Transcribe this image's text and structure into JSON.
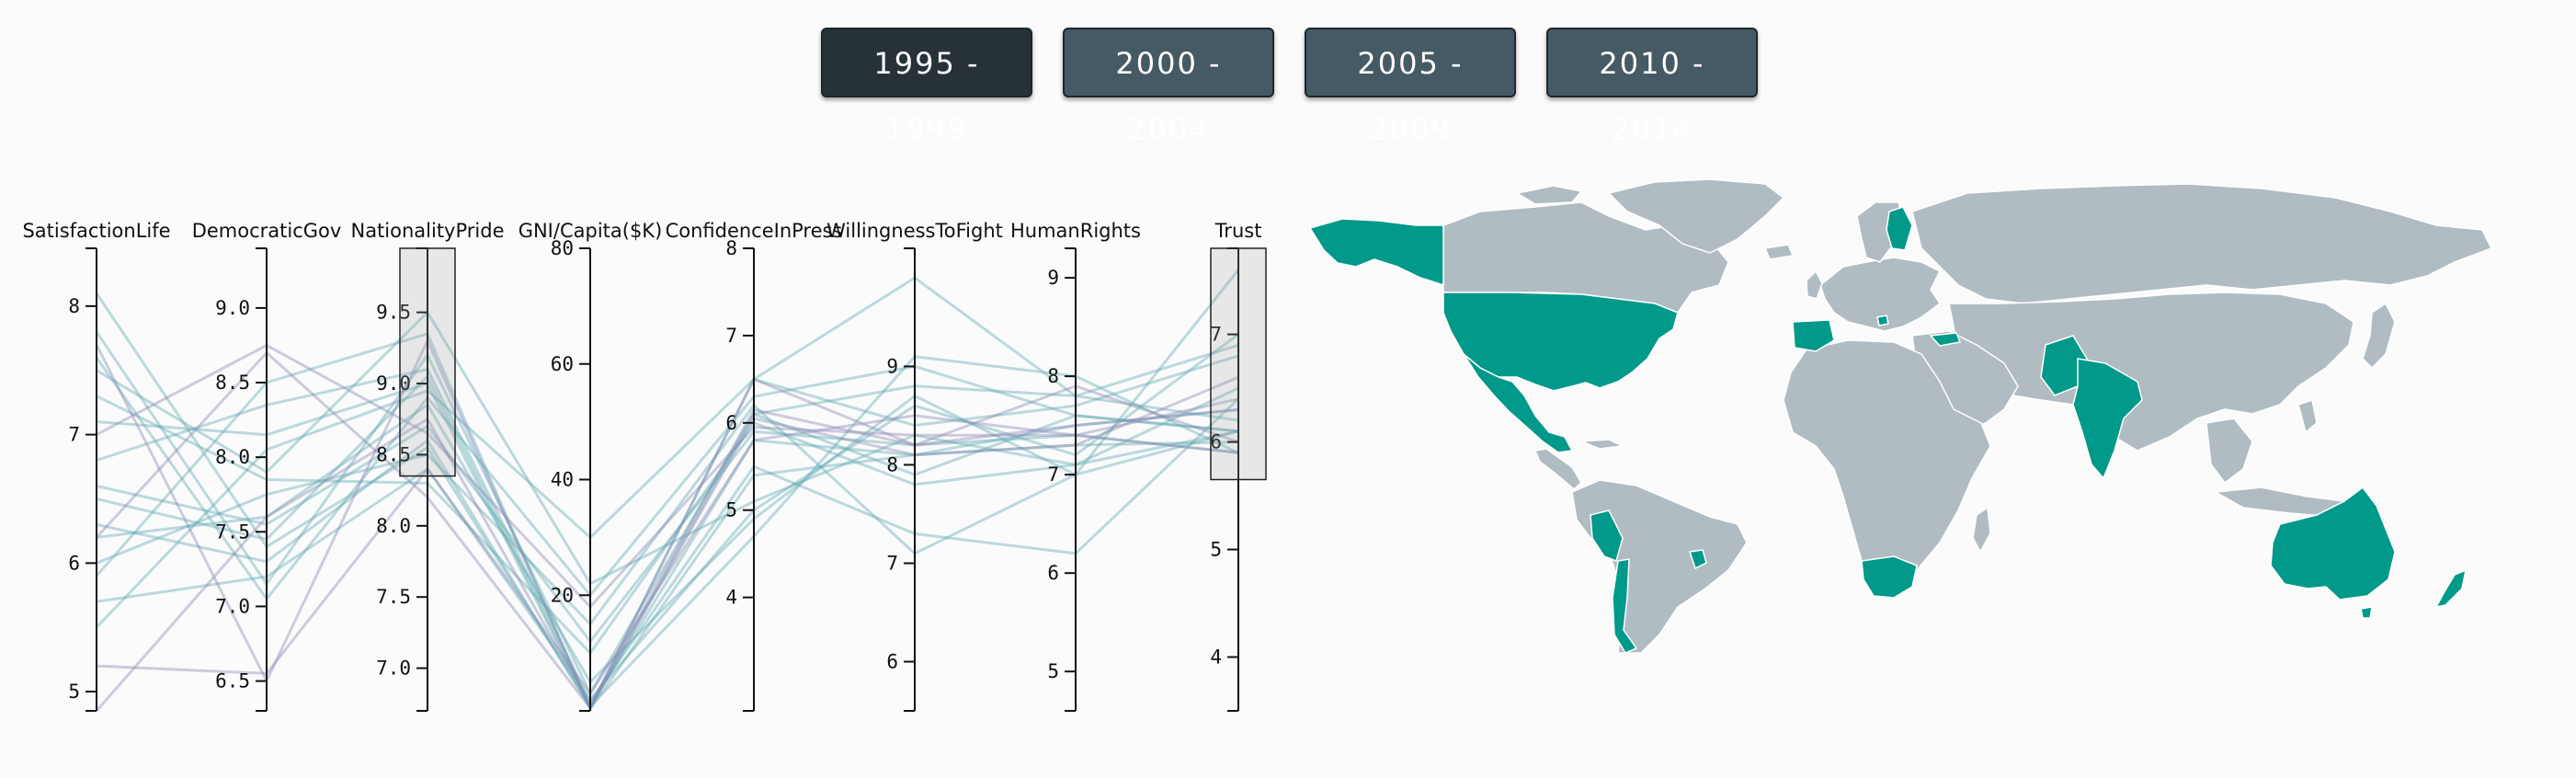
{
  "periods": [
    {
      "label": "1995 - 1999",
      "active": true
    },
    {
      "label": "2000 - 2004",
      "active": false
    },
    {
      "label": "2005 - 2009",
      "active": false
    },
    {
      "label": "2010 - 2014",
      "active": false
    }
  ],
  "colors": {
    "line_teal": "#5fa9b3",
    "line_purple": "#8a88b5",
    "axis": "#111111",
    "brush_fill": "#9e9e9e",
    "brush_stroke": "#222222",
    "land": "#b0bcc2",
    "border": "#ffffff",
    "highlight": "#00998a",
    "button": "#455a64",
    "button_active": "#263238"
  },
  "chart_data": [
    {
      "type": "parallel-coordinates",
      "axes": [
        {
          "name": "SatisfactionLife",
          "domain": [
            4.85,
            8.45
          ],
          "ticks": [
            5,
            6,
            7,
            8
          ],
          "tick_labels": [
            "5",
            "6",
            "7",
            "8"
          ]
        },
        {
          "name": "DemocraticGov",
          "domain": [
            6.3,
            9.4
          ],
          "ticks": [
            6.5,
            7.0,
            7.5,
            8.0,
            8.5,
            9.0
          ],
          "tick_labels": [
            "6.5",
            "7.0",
            "7.5",
            "8.0",
            "8.5",
            "9.0"
          ]
        },
        {
          "name": "NationalityPride",
          "domain": [
            6.7,
            9.95
          ],
          "ticks": [
            7.0,
            7.5,
            8.0,
            8.5,
            9.0,
            9.5
          ],
          "tick_labels": [
            "7.0",
            "7.5",
            "8.0",
            "8.5",
            "9.0",
            "9.5"
          ],
          "brush": [
            8.35,
            9.95
          ]
        },
        {
          "name": "GNI/Capita($K)",
          "domain": [
            0,
            80
          ],
          "ticks": [
            20,
            40,
            60,
            80
          ],
          "tick_labels": [
            "20",
            "40",
            "60",
            "80"
          ]
        },
        {
          "name": "ConfidenceInPress",
          "domain": [
            2.7,
            8
          ],
          "ticks": [
            4,
            5,
            6,
            7,
            8
          ],
          "tick_labels": [
            "4",
            "5",
            "6",
            "7",
            "8"
          ]
        },
        {
          "name": "WillingnessToFight",
          "domain": [
            5.5,
            10.2
          ],
          "ticks": [
            6,
            7,
            8,
            9
          ],
          "tick_labels": [
            "6",
            "7",
            "8",
            "9"
          ]
        },
        {
          "name": "HumanRights",
          "domain": [
            4.6,
            9.3
          ],
          "ticks": [
            5,
            6,
            7,
            8,
            9
          ],
          "tick_labels": [
            "5",
            "6",
            "7",
            "8",
            "9"
          ]
        },
        {
          "name": "Trust",
          "domain": [
            3.5,
            7.8
          ],
          "ticks": [
            4,
            5,
            6,
            7
          ],
          "tick_labels": [
            "4",
            "5",
            "6",
            "7"
          ],
          "brush": [
            5.65,
            7.8
          ]
        }
      ],
      "records": [
        {
          "color": "teal",
          "values": [
            8.1,
            7.4,
            8.55,
            0.8,
            5.8,
            8.1,
            7.5,
            6.3
          ]
        },
        {
          "color": "teal",
          "values": [
            7.8,
            7.15,
            9.2,
            3,
            6.1,
            8.8,
            7.8,
            6.2
          ]
        },
        {
          "color": "teal",
          "values": [
            7.6,
            7.05,
            8.9,
            20,
            6.3,
            9.0,
            7.6,
            6.1
          ]
        },
        {
          "color": "teal",
          "values": [
            7.5,
            7.9,
            9.5,
            22,
            5.1,
            8.3,
            7.1,
            6.5
          ]
        },
        {
          "color": "teal",
          "values": [
            7.1,
            8.15,
            9.0,
            0.5,
            6.1,
            7.9,
            7.6,
            6.1
          ]
        },
        {
          "color": "teal",
          "values": [
            6.8,
            8.35,
            9.1,
            1.5,
            5.5,
            7.3,
            6.2,
            6.4
          ]
        },
        {
          "color": "teal",
          "values": [
            6.6,
            7.55,
            8.7,
            12,
            5.9,
            8.2,
            7.4,
            5.9
          ]
        },
        {
          "color": "teal",
          "values": [
            6.3,
            7.3,
            8.6,
            0.5,
            6.5,
            9.9,
            7.8,
            6.9
          ]
        },
        {
          "color": "teal",
          "values": [
            6.2,
            7.6,
            8.85,
            5,
            4.9,
            8.7,
            7.0,
            7.6
          ]
        },
        {
          "color": "teal",
          "values": [
            6.0,
            7.75,
            8.5,
            15,
            6.2,
            7.1,
            7.0,
            6.1
          ]
        },
        {
          "color": "teal",
          "values": [
            5.9,
            8.5,
            9.35,
            0.3,
            5.4,
            8.1,
            7.3,
            6.0
          ]
        },
        {
          "color": "teal",
          "values": [
            5.7,
            7.2,
            8.4,
            2,
            5.0,
            8.6,
            7.2,
            7.0
          ]
        },
        {
          "color": "teal",
          "values": [
            5.5,
            8.05,
            8.95,
            30,
            6.5,
            8.4,
            7.7,
            6.8
          ]
        },
        {
          "color": "teal",
          "values": [
            7.3,
            7.85,
            8.3,
            10,
            6.0,
            7.8,
            7.1,
            6.1
          ]
        },
        {
          "color": "teal",
          "values": [
            6.5,
            7.45,
            9.05,
            0.8,
            4.7,
            9.1,
            8.0,
            5.9
          ]
        },
        {
          "color": "purple",
          "values": [
            4.85,
            7.6,
            8.75,
            1,
            6.15,
            8.2,
            7.5,
            6.3
          ]
        },
        {
          "color": "purple",
          "values": [
            7.0,
            8.75,
            8.65,
            18,
            5.95,
            8.3,
            7.4,
            6.4
          ]
        },
        {
          "color": "purple",
          "values": [
            6.2,
            8.7,
            8.2,
            0.5,
            6.05,
            8.1,
            7.3,
            6.6
          ]
        },
        {
          "color": "purple",
          "values": [
            7.7,
            6.5,
            9.3,
            0.5,
            6.5,
            8.2,
            7.9,
            6.0
          ]
        },
        {
          "color": "purple",
          "values": [
            5.2,
            6.55,
            8.4,
            3,
            5.8,
            8.5,
            7.4,
            5.9
          ]
        }
      ]
    },
    {
      "type": "choropleth-map",
      "highlighted_regions": [
        "Alaska",
        "United States",
        "Mexico",
        "Peru",
        "Chile",
        "Uruguay",
        "Spain",
        "Finland",
        "Slovenia",
        "Turkey",
        "Pakistan",
        "India",
        "South Africa",
        "Australia",
        "New Zealand"
      ]
    }
  ]
}
